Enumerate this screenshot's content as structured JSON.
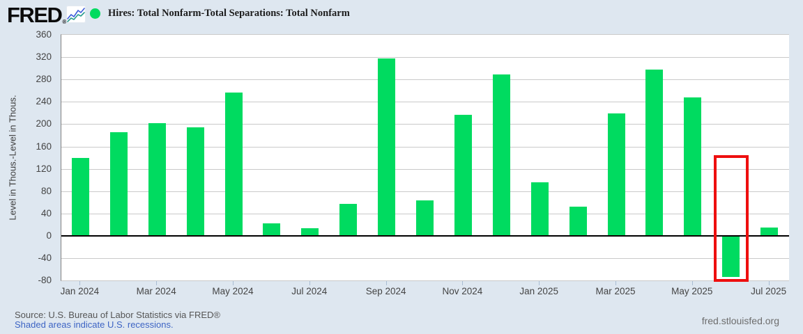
{
  "header": {
    "logo_text": "FRED",
    "logo_mark": "®",
    "series_title": "Hires: Total Nonfarm-Total Separations: Total Nonfarm",
    "legend_dot_color": "#00db60"
  },
  "chart_data": {
    "type": "bar",
    "title": "Hires: Total Nonfarm-Total Separations: Total Nonfarm",
    "ylabel": "Level in Thous.-Level in Thous.",
    "xlabel": "",
    "ylim": [
      -80,
      360
    ],
    "yticks": [
      360,
      320,
      280,
      240,
      200,
      160,
      120,
      80,
      40,
      0,
      -40,
      -80
    ],
    "grid": true,
    "legend_position": "top-left",
    "bar_color": "#00db60",
    "categories": [
      "Jan 2024",
      "Feb 2024",
      "Mar 2024",
      "Apr 2024",
      "May 2024",
      "Jun 2024",
      "Jul 2024",
      "Aug 2024",
      "Sep 2024",
      "Oct 2024",
      "Nov 2024",
      "Dec 2024",
      "Jan 2025",
      "Feb 2025",
      "Mar 2025",
      "Apr 2025",
      "May 2025",
      "Jun 2025",
      "Jul 2025"
    ],
    "values": [
      140,
      185,
      202,
      194,
      257,
      22,
      14,
      57,
      318,
      63,
      217,
      289,
      96,
      52,
      219,
      298,
      248,
      -74,
      15
    ],
    "xtick_labels": [
      "Jan 2024",
      "Mar 2024",
      "May 2024",
      "Jul 2024",
      "Sep 2024",
      "Nov 2024",
      "Jan 2025",
      "Mar 2025",
      "May 2025",
      "Jul 2025"
    ],
    "highlight_box": {
      "category": "Jun 2025",
      "color": "#ee0f0f",
      "top_value": 145,
      "bottom_value": -80
    }
  },
  "footer": {
    "source": "Source: U.S. Bureau of Labor Statistics via FRED®",
    "recession_note": "Shaded areas indicate U.S. recessions.",
    "site_url": "fred.stlouisfed.org"
  },
  "colors": {
    "page_bg": "#dee7f0",
    "plot_bg": "#ffffff",
    "gridline": "#c9c9c9",
    "zero_line": "#000000",
    "axis_text": "#444444",
    "link_blue": "#3d64c4"
  }
}
